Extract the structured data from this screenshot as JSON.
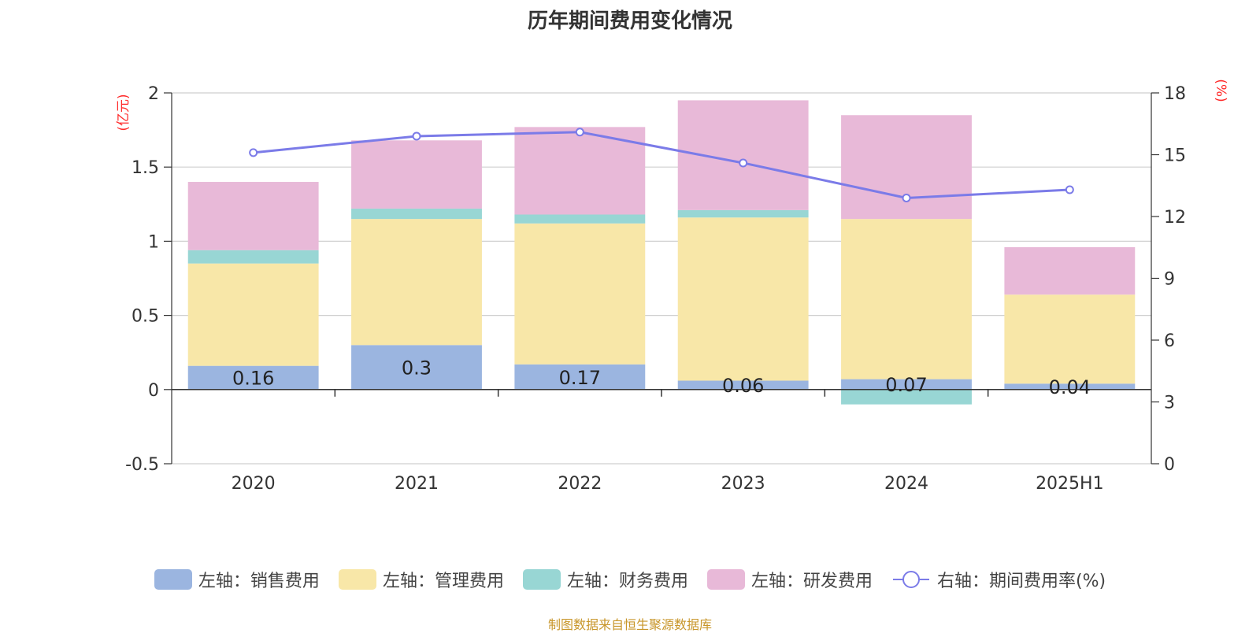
{
  "chart_data": {
    "type": "bar",
    "stacked": true,
    "title": "历年期间费用变化情况",
    "categories": [
      "2020",
      "2021",
      "2022",
      "2023",
      "2024",
      "2025H1"
    ],
    "left_axis": {
      "unit_label": "(亿元)",
      "ylim": [
        -0.5,
        2
      ],
      "ticks": [
        "2",
        "1.5",
        "1",
        "0.5",
        "0",
        "-0.5"
      ]
    },
    "right_axis": {
      "unit_label": "(%)",
      "ylim": [
        0,
        18
      ],
      "ticks": [
        "18",
        "15",
        "12",
        "9",
        "6",
        "3",
        "0"
      ]
    },
    "series": [
      {
        "name": "左轴：销售费用",
        "axis": "left",
        "type": "bar",
        "color": "#9bb5e0",
        "values": [
          0.16,
          0.3,
          0.17,
          0.06,
          0.07,
          0.04
        ],
        "labels": [
          "0.16",
          "0.3",
          "0.17",
          "0.06",
          "0.07",
          "0.04"
        ]
      },
      {
        "name": "左轴：管理费用",
        "axis": "left",
        "type": "bar",
        "color": "#f8e7a8",
        "values": [
          0.69,
          0.85,
          0.95,
          1.1,
          1.08,
          0.6
        ]
      },
      {
        "name": "左轴：财务费用",
        "axis": "left",
        "type": "bar",
        "color": "#98d6d4",
        "values": [
          0.09,
          0.07,
          0.06,
          0.05,
          -0.1,
          0.0
        ]
      },
      {
        "name": "左轴：研发费用",
        "axis": "left",
        "type": "bar",
        "color": "#e8b9d8",
        "values": [
          0.46,
          0.46,
          0.59,
          0.74,
          0.7,
          0.32
        ]
      },
      {
        "name": "右轴：期间费用率(%)",
        "axis": "right",
        "type": "line",
        "color": "#7b7be8",
        "values": [
          15.1,
          15.9,
          16.1,
          14.6,
          12.9,
          13.3
        ]
      }
    ],
    "grid": true,
    "legend_position": "bottom",
    "source_note": "制图数据来自恒生聚源数据库"
  }
}
